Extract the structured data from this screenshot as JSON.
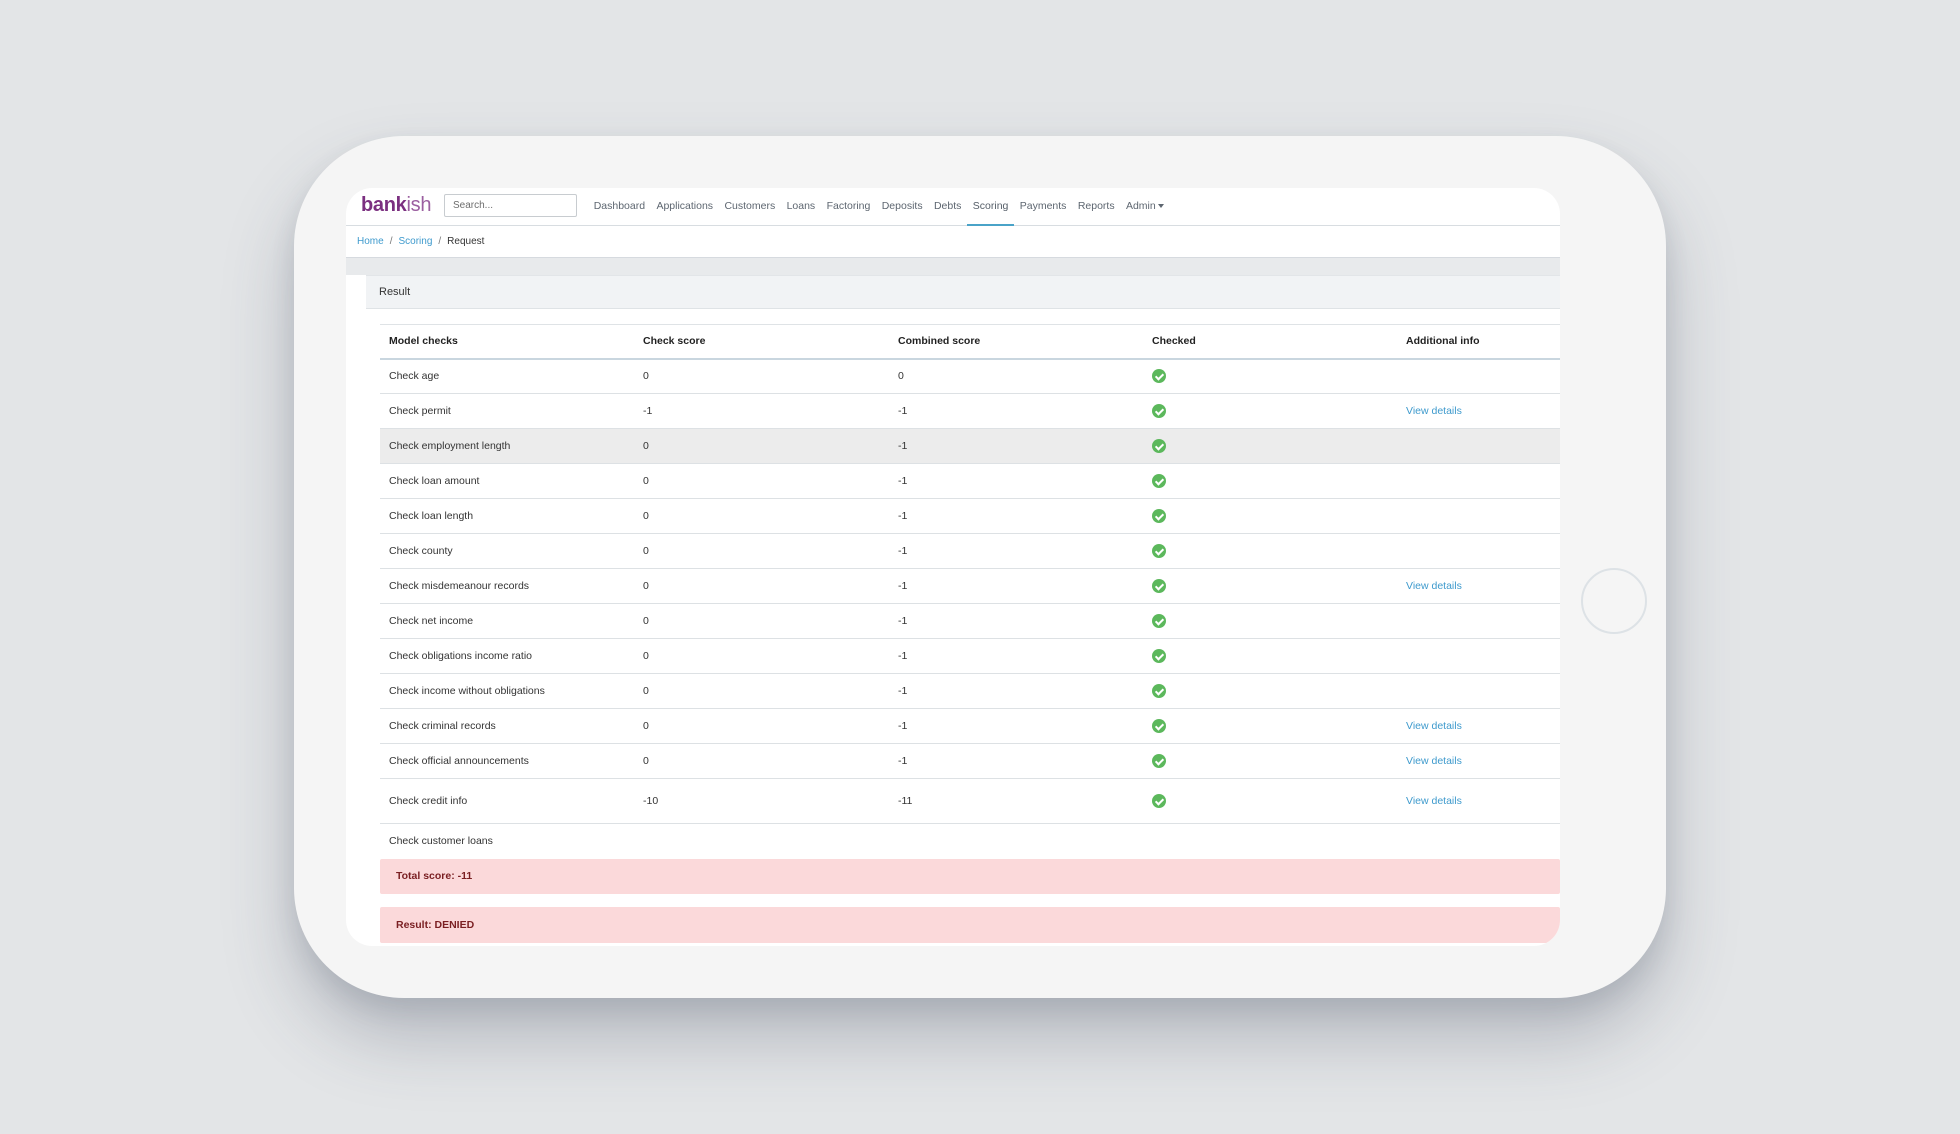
{
  "app": {
    "brand_bold": "bank",
    "brand_light": "ish"
  },
  "search": {
    "placeholder": "Search..."
  },
  "nav": {
    "items": [
      {
        "label": "Dashboard"
      },
      {
        "label": "Applications"
      },
      {
        "label": "Customers"
      },
      {
        "label": "Loans"
      },
      {
        "label": "Factoring"
      },
      {
        "label": "Deposits"
      },
      {
        "label": "Debts"
      },
      {
        "label": "Scoring",
        "active": true
      },
      {
        "label": "Payments"
      },
      {
        "label": "Reports"
      },
      {
        "label": "Admin",
        "dropdown": true
      }
    ]
  },
  "breadcrumb": {
    "home": "Home",
    "scoring": "Scoring",
    "current": "Request"
  },
  "card": {
    "title": "Result"
  },
  "table": {
    "headers": [
      "Model checks",
      "Check score",
      "Combined score",
      "Checked",
      "Additional info"
    ],
    "rows": [
      {
        "check": "Check age",
        "score": "0",
        "combined": "0",
        "checked": true,
        "info": ""
      },
      {
        "check": "Check permit",
        "score": "-1",
        "combined": "-1",
        "checked": true,
        "info": "View details"
      },
      {
        "check": "Check employment length",
        "score": "0",
        "combined": "-1",
        "checked": true,
        "info": ""
      },
      {
        "check": "Check loan amount",
        "score": "0",
        "combined": "-1",
        "checked": true,
        "info": ""
      },
      {
        "check": "Check loan length",
        "score": "0",
        "combined": "-1",
        "checked": true,
        "info": ""
      },
      {
        "check": "Check county",
        "score": "0",
        "combined": "-1",
        "checked": true,
        "info": ""
      },
      {
        "check": "Check misdemeanour records",
        "score": "0",
        "combined": "-1",
        "checked": true,
        "info": "View details"
      },
      {
        "check": "Check net income",
        "score": "0",
        "combined": "-1",
        "checked": true,
        "info": ""
      },
      {
        "check": "Check obligations income ratio",
        "score": "0",
        "combined": "-1",
        "checked": true,
        "info": ""
      },
      {
        "check": "Check income without obligations",
        "score": "0",
        "combined": "-1",
        "checked": true,
        "info": ""
      },
      {
        "check": "Check criminal records",
        "score": "0",
        "combined": "-1",
        "checked": true,
        "info": "View details"
      },
      {
        "check": "Check official announcements",
        "score": "0",
        "combined": "-1",
        "checked": true,
        "info": "View details"
      },
      {
        "check": "Check credit info",
        "score": "-10",
        "combined": "-11",
        "checked": true,
        "info": "View details"
      },
      {
        "check": "Check customer loans",
        "score": "",
        "combined": "",
        "checked": false,
        "info": ""
      }
    ]
  },
  "summary": {
    "total": "Total score: -11",
    "result": "Result: DENIED"
  },
  "colors": {
    "brand": "#7b2f80",
    "link": "#3e9acd",
    "success": "#5cb85c",
    "danger_bg": "#fbd9da"
  }
}
